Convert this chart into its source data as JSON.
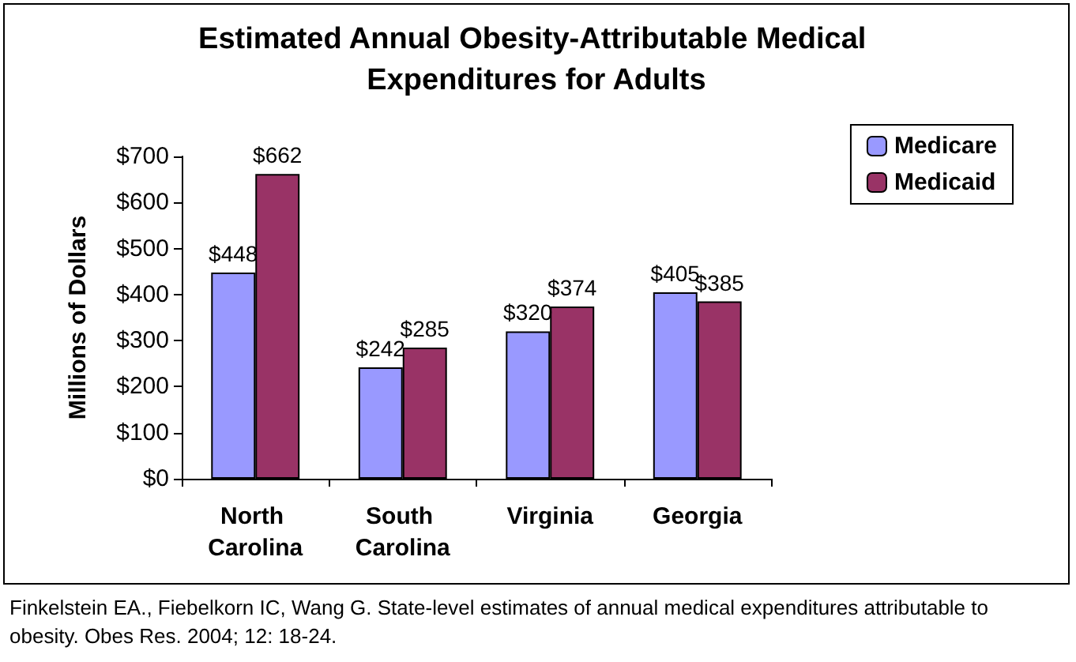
{
  "chart_data": {
    "type": "bar",
    "title": "Estimated Annual Obesity-Attributable Medical Expenditures for Adults",
    "ylabel": "Millions of Dollars",
    "categories": [
      "North Carolina",
      "South Carolina",
      "Virginia",
      "Georgia"
    ],
    "series": [
      {
        "name": "Medicare",
        "color": "#9999ff",
        "values": [
          448,
          242,
          320,
          405
        ],
        "value_labels": [
          "$448",
          "$242",
          "$320",
          "$405"
        ]
      },
      {
        "name": "Medicaid",
        "color": "#993366",
        "values": [
          662,
          285,
          374,
          385
        ],
        "value_labels": [
          "$662",
          "$285",
          "$374",
          "$385"
        ]
      }
    ],
    "ylim": [
      0,
      700
    ],
    "yticks": [
      {
        "value": 0,
        "label": "$0"
      },
      {
        "value": 100,
        "label": "$100"
      },
      {
        "value": 200,
        "label": "$200"
      },
      {
        "value": 300,
        "label": "$300"
      },
      {
        "value": 400,
        "label": "$400"
      },
      {
        "value": 500,
        "label": "$500"
      },
      {
        "value": 600,
        "label": "$600"
      },
      {
        "value": 700,
        "label": "$700"
      }
    ],
    "grid": false,
    "legend": "top right",
    "annotations": [
      "Finkelstein EA., Fiebelkorn IC, Wang G. State-level estimates of annual medical expenditures attributable to obesity. Obes Res. 2004; 12: 18-24."
    ]
  }
}
